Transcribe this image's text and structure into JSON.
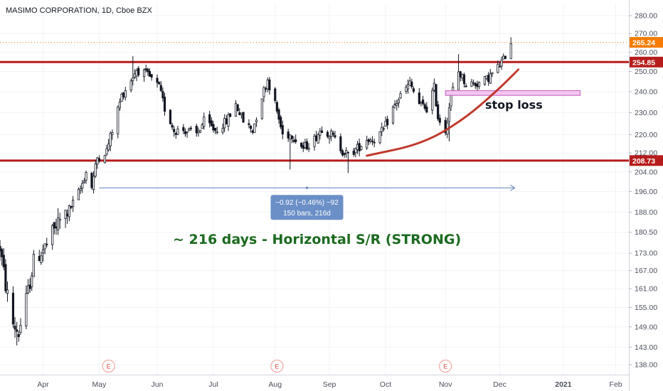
{
  "chart_data": {
    "type": "candlestick",
    "title": "MASIMO CORPORATION, 1D, Cboe BZX",
    "y_scale": "log",
    "ylim": [
      136,
      286
    ],
    "y_ticks": [
      280,
      270,
      260,
      250,
      240,
      230,
      220,
      212,
      204,
      196,
      188,
      180.5,
      173,
      167,
      161,
      155,
      149,
      143,
      138
    ],
    "y_tick_labels": [
      "280.00",
      "270.00",
      "260.00",
      "250.00",
      "240.00",
      "230.00",
      "220.00",
      "212.00",
      "204.00",
      "196.00",
      "188.00",
      "180.50",
      "173.00",
      "167.00",
      "161.00",
      "155.00",
      "149.00",
      "143.00",
      "138.00"
    ],
    "x_ticks": [
      {
        "label": "Apr",
        "date": "2020-04-01"
      },
      {
        "label": "May",
        "date": "2020-05-01"
      },
      {
        "label": "Jun",
        "date": "2020-06-01"
      },
      {
        "label": "Jul",
        "date": "2020-07-01"
      },
      {
        "label": "Aug",
        "date": "2020-08-03"
      },
      {
        "label": "Sep",
        "date": "2020-09-01"
      },
      {
        "label": "Oct",
        "date": "2020-10-01"
      },
      {
        "label": "Nov",
        "date": "2020-11-02"
      },
      {
        "label": "Dec",
        "date": "2020-12-01"
      },
      {
        "label": "2021",
        "date": "2021-01-04"
      },
      {
        "label": "Feb",
        "date": "2021-02-01"
      }
    ],
    "x_range": [
      "2020-03-09",
      "2021-02-08"
    ],
    "price_path": [
      [
        "2020-03-09",
        175
      ],
      [
        "2020-03-12",
        162
      ],
      [
        "2020-03-16",
        150
      ],
      [
        "2020-03-19",
        147
      ],
      [
        "2020-03-24",
        160
      ],
      [
        "2020-03-27",
        170
      ],
      [
        "2020-04-03",
        176
      ],
      [
        "2020-04-09",
        184
      ],
      [
        "2020-04-16",
        190
      ],
      [
        "2020-04-21",
        197
      ],
      [
        "2020-04-24",
        204
      ],
      [
        "2020-04-27",
        198
      ],
      [
        "2020-04-30",
        210
      ],
      [
        "2020-05-05",
        213
      ],
      [
        "2020-05-08",
        222
      ],
      [
        "2020-05-13",
        238
      ],
      [
        "2020-05-18",
        246
      ],
      [
        "2020-05-21",
        251
      ],
      [
        "2020-05-27",
        248
      ],
      [
        "2020-06-02",
        242
      ],
      [
        "2020-06-05",
        232
      ],
      [
        "2020-06-10",
        222
      ],
      [
        "2020-06-16",
        222
      ],
      [
        "2020-06-22",
        220
      ],
      [
        "2020-06-26",
        226
      ],
      [
        "2020-07-02",
        222
      ],
      [
        "2020-07-08",
        226
      ],
      [
        "2020-07-13",
        234
      ],
      [
        "2020-07-17",
        226
      ],
      [
        "2020-07-22",
        222
      ],
      [
        "2020-07-27",
        238
      ],
      [
        "2020-07-30",
        246
      ],
      [
        "2020-08-03",
        234
      ],
      [
        "2020-08-07",
        220
      ],
      [
        "2020-08-12",
        220
      ],
      [
        "2020-08-18",
        214
      ],
      [
        "2020-08-24",
        218
      ],
      [
        "2020-08-28",
        223
      ],
      [
        "2020-09-02",
        220
      ],
      [
        "2020-09-08",
        213
      ],
      [
        "2020-09-11",
        211
      ],
      [
        "2020-09-16",
        214
      ],
      [
        "2020-09-21",
        218
      ],
      [
        "2020-09-25",
        218
      ],
      [
        "2020-09-30",
        222
      ],
      [
        "2020-10-05",
        232
      ],
      [
        "2020-10-09",
        238
      ],
      [
        "2020-10-14",
        244
      ],
      [
        "2020-10-19",
        234
      ],
      [
        "2020-10-23",
        232
      ],
      [
        "2020-10-27",
        242
      ],
      [
        "2020-10-29",
        228
      ],
      [
        "2020-11-02",
        222
      ],
      [
        "2020-11-05",
        238
      ],
      [
        "2020-11-09",
        250
      ],
      [
        "2020-11-13",
        244
      ],
      [
        "2020-11-19",
        244
      ],
      [
        "2020-11-24",
        246
      ],
      [
        "2020-11-30",
        252
      ],
      [
        "2020-12-03",
        256
      ],
      [
        "2020-12-07",
        266
      ]
    ],
    "high_low_marks": [
      {
        "date": "2020-03-18",
        "low": 143.5
      },
      {
        "date": "2020-05-19",
        "high": 258
      },
      {
        "date": "2020-08-11",
        "low": 205
      },
      {
        "date": "2020-09-11",
        "low": 203.5
      },
      {
        "date": "2020-11-04",
        "low": 217
      },
      {
        "date": "2020-11-09",
        "high": 259
      },
      {
        "date": "2020-12-08",
        "high": 268
      }
    ],
    "horizontal_levels": [
      {
        "value": 254.85,
        "label": "254.85",
        "color": "#b71c1c"
      },
      {
        "value": 208.73,
        "label": "208.73",
        "color": "#b71c1c"
      }
    ],
    "last_price": {
      "value": 265.24,
      "label": "265.24",
      "color": "#f57c00"
    },
    "stop_loss_zone": {
      "from": "2020-11-02",
      "to": "2021-01-13",
      "low": 238.2,
      "high": 240.5,
      "fill": "#f3c6ef",
      "stroke": "#c35fc0"
    },
    "trend_curve": {
      "color": "#c0392b",
      "points": [
        [
          "2020-09-21",
          210.8
        ],
        [
          "2020-10-21",
          216
        ],
        [
          "2020-11-12",
          227
        ],
        [
          "2020-11-29",
          240
        ],
        [
          "2020-12-11",
          251
        ]
      ]
    },
    "measure_arrow": {
      "from": "2020-05-01",
      "to": "2020-12-09",
      "value": 197.5
    },
    "earnings_dates": [
      "2020-05-06",
      "2020-08-04",
      "2020-11-02"
    ],
    "colors": {
      "bull": "#ffffff",
      "bear": "#131722",
      "grid": "#f1f3f6",
      "axis_text": "#4a4f5c",
      "support": "#b71c1c"
    }
  },
  "annotations": {
    "range_text": "~ 216 days - Horizontal S/R (STRONG)",
    "stop_loss": "stop loss",
    "measure_line1": "−0.92 (−0.46%) −92",
    "measure_line2": "150 bars, 216d",
    "earnings_marker": "E"
  }
}
